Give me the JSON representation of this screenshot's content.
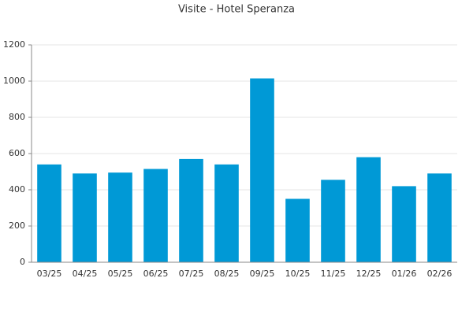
{
  "chart_data": {
    "type": "bar",
    "title": "Visite - Hotel Speranza",
    "categories": [
      "03/25",
      "04/25",
      "05/25",
      "06/25",
      "07/25",
      "08/25",
      "09/25",
      "10/25",
      "11/25",
      "12/25",
      "01/26",
      "02/26"
    ],
    "values": [
      540,
      490,
      495,
      515,
      570,
      540,
      1015,
      350,
      455,
      580,
      420,
      490
    ],
    "color": "#0099d6",
    "ylim": [
      0,
      1200
    ],
    "yticks": [
      0,
      200,
      400,
      600,
      800,
      1000,
      1200
    ],
    "grid": true
  }
}
